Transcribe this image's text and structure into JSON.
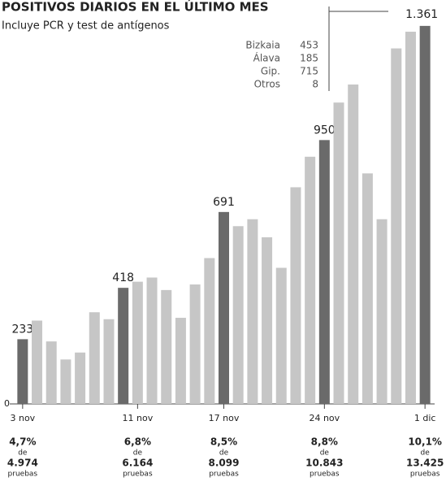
{
  "chart_data": {
    "type": "bar",
    "title": "POSITIVOS DIARIOS EN EL ÚLTIMO MES",
    "subtitle": "Incluye PCR y test de antígenos",
    "categories": [
      "3 nov",
      null,
      null,
      null,
      null,
      null,
      null,
      null,
      "11 nov",
      null,
      null,
      null,
      null,
      null,
      "17 nov",
      null,
      null,
      null,
      null,
      null,
      null,
      "24 nov",
      null,
      null,
      null,
      null,
      null,
      null,
      "1 dic"
    ],
    "values": [
      233,
      300,
      225,
      160,
      185,
      330,
      305,
      418,
      440,
      455,
      410,
      310,
      430,
      525,
      691,
      640,
      665,
      600,
      490,
      780,
      890,
      950,
      1085,
      1150,
      830,
      665,
      1280,
      1340,
      1361
    ],
    "value_labels": [
      "233",
      null,
      null,
      null,
      null,
      null,
      null,
      "418",
      null,
      null,
      null,
      null,
      null,
      null,
      "691",
      null,
      null,
      null,
      null,
      null,
      null,
      "950",
      null,
      null,
      null,
      null,
      null,
      null,
      "1.361"
    ],
    "color": "#c6c6c6",
    "highlight_color": "#6a6a6a",
    "ylim": [
      0,
      1425
    ],
    "yticks": [
      0
    ],
    "breakdown": [
      {
        "name": "Bizkaia",
        "value": "453"
      },
      {
        "name": "Álava",
        "value": "185"
      },
      {
        "name": "Gip.",
        "value": "715"
      },
      {
        "name": "Otros",
        "value": "8"
      }
    ],
    "notes": [
      {
        "pct": "4,7%",
        "tests": "4.974"
      },
      {
        "pct": "6,8%",
        "tests": "6.164"
      },
      {
        "pct": "8,5%",
        "tests": "8.099"
      },
      {
        "pct": "8,8%",
        "tests": "10.843"
      },
      {
        "pct": "10,1%",
        "tests": "13.425"
      }
    ],
    "de": "de",
    "pruebas": "pruebas"
  }
}
